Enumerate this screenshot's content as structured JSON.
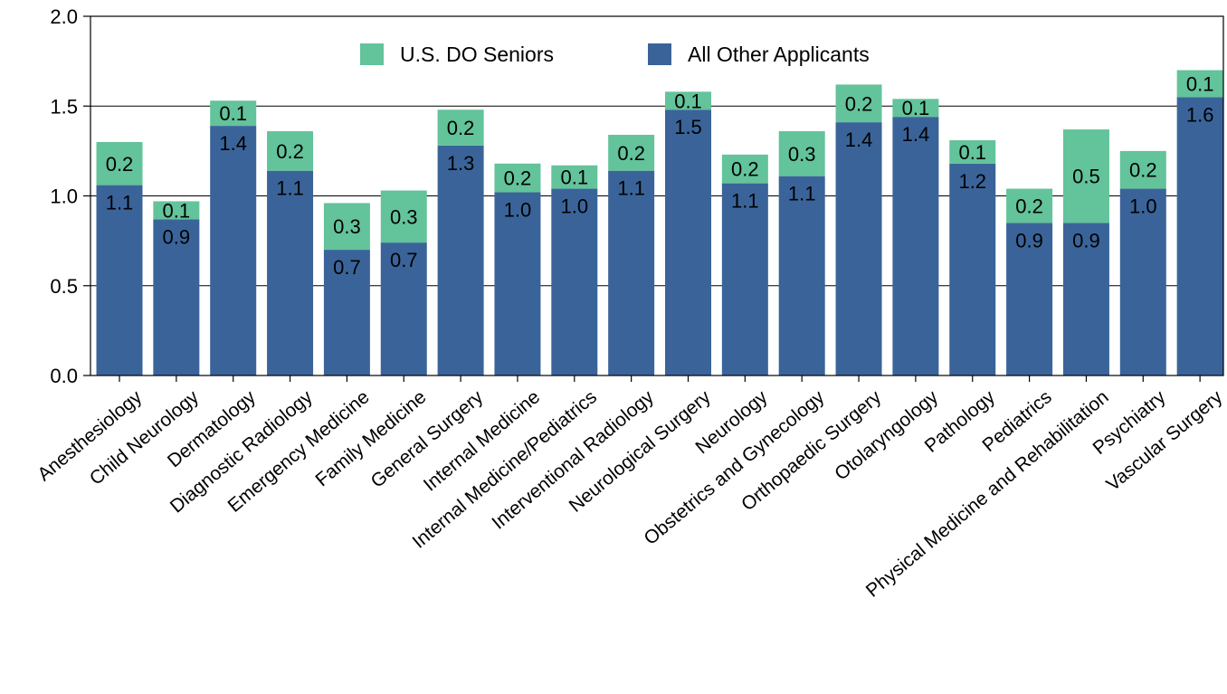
{
  "chart_data": {
    "type": "bar",
    "stacked": true,
    "categories": [
      "Anesthesiology",
      "Child Neurology",
      "Dermatology",
      "Diagnostic Radiology",
      "Emergency Medicine",
      "Family Medicine",
      "General Surgery",
      "Internal Medicine",
      "Internal Medicine/Pediatrics",
      "Interventional Radiology",
      "Neurological Surgery",
      "Neurology",
      "Obstetrics and Gynecology",
      "Orthopaedic Surgery",
      "Otolaryngology",
      "Pathology",
      "Pediatrics",
      "Physical Medicine and Rehabilitation",
      "Psychiatry",
      "Vascular Surgery"
    ],
    "series": [
      {
        "name": "All Other Applicants",
        "color": "#3a6499",
        "values": [
          1.06,
          0.87,
          1.39,
          1.14,
          0.7,
          0.74,
          1.28,
          1.02,
          1.04,
          1.14,
          1.48,
          1.07,
          1.11,
          1.41,
          1.44,
          1.18,
          0.85,
          0.85,
          1.04,
          1.55
        ],
        "labels": [
          "1.1",
          "0.9",
          "1.4",
          "1.1",
          "0.7",
          "0.7",
          "1.3",
          "1.0",
          "1.0",
          "1.1",
          "1.5",
          "1.1",
          "1.1",
          "1.4",
          "1.4",
          "1.2",
          "0.9",
          "0.9",
          "1.0",
          "1.6"
        ]
      },
      {
        "name": "U.S. DO Seniors",
        "color": "#63c39b",
        "values": [
          0.24,
          0.1,
          0.14,
          0.22,
          0.26,
          0.29,
          0.2,
          0.16,
          0.13,
          0.2,
          0.1,
          0.16,
          0.25,
          0.21,
          0.1,
          0.13,
          0.19,
          0.52,
          0.21,
          0.15
        ],
        "labels": [
          "0.2",
          "0.1",
          "0.1",
          "0.2",
          "0.3",
          "0.3",
          "0.2",
          "0.2",
          "0.1",
          "0.2",
          "0.1",
          "0.2",
          "0.3",
          "0.2",
          "0.1",
          "0.1",
          "0.2",
          "0.5",
          "0.2",
          "0.1"
        ]
      }
    ],
    "legend": {
      "position": "top-center",
      "order": [
        "U.S. DO Seniors",
        "All Other Applicants"
      ]
    },
    "y_ticks": [
      "0.0",
      "0.5",
      "1.0",
      "1.5",
      "2.0"
    ],
    "ylim": [
      0,
      2.0
    ],
    "grid": true,
    "title": "",
    "xlabel": "",
    "ylabel": ""
  }
}
